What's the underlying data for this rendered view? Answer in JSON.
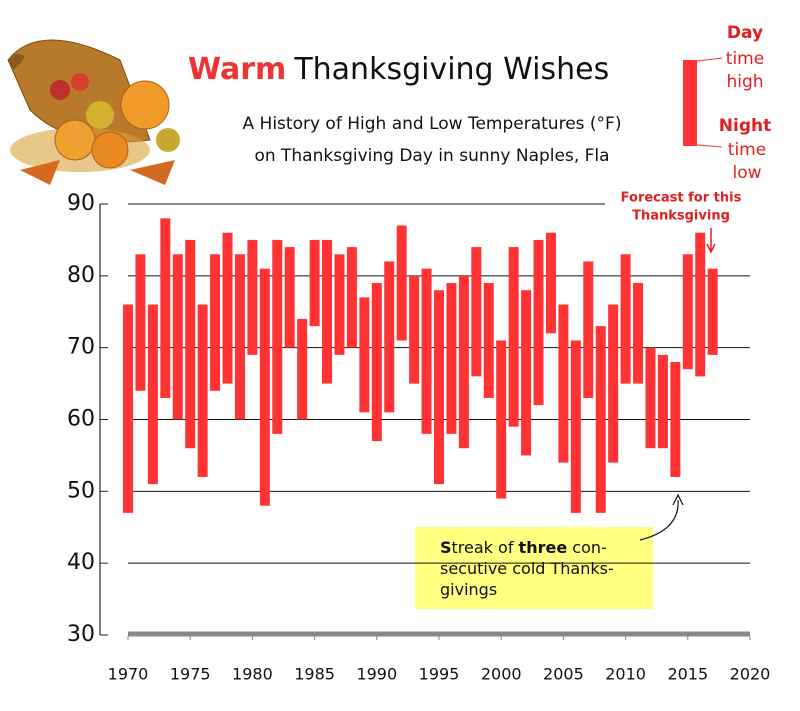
{
  "chart_data": {
    "type": "floating_bar",
    "title_emphasis": "Warm",
    "title_rest": "Thanksgiving Wishes",
    "subtitle": [
      "A History of High and Low Temperatures (°F)",
      "on Thanksgiving Day in sunny Naples, Fla"
    ],
    "legend": {
      "high": [
        "Day",
        "time",
        "high"
      ],
      "low": [
        "Night",
        "time",
        "low"
      ]
    },
    "x": [
      1970,
      1971,
      1972,
      1973,
      1974,
      1975,
      1976,
      1977,
      1978,
      1979,
      1980,
      1981,
      1982,
      1983,
      1984,
      1985,
      1986,
      1987,
      1988,
      1989,
      1990,
      1991,
      1992,
      1993,
      1994,
      1995,
      1996,
      1997,
      1998,
      1999,
      2000,
      2001,
      2002,
      2003,
      2004,
      2005,
      2006,
      2007,
      2008,
      2009,
      2010,
      2011,
      2012,
      2013,
      2014,
      2015,
      2016,
      2017
    ],
    "high": [
      76,
      83,
      76,
      88,
      83,
      85,
      76,
      83,
      86,
      83,
      85,
      81,
      85,
      84,
      74,
      85,
      85,
      83,
      84,
      77,
      79,
      82,
      87,
      80,
      81,
      78,
      79,
      80,
      84,
      79,
      71,
      84,
      78,
      85,
      86,
      76,
      71,
      82,
      73,
      76,
      83,
      79,
      70,
      69,
      68,
      83,
      86,
      81
    ],
    "low": [
      47,
      64,
      51,
      63,
      60,
      56,
      52,
      64,
      65,
      60,
      69,
      48,
      58,
      70,
      60,
      73,
      65,
      69,
      70,
      61,
      57,
      61,
      71,
      65,
      58,
      51,
      58,
      56,
      66,
      63,
      49,
      59,
      55,
      62,
      72,
      54,
      47,
      63,
      47,
      54,
      65,
      65,
      56,
      56,
      52,
      67,
      66,
      69
    ],
    "color": "#ff3333",
    "xlim": [
      1970,
      2020
    ],
    "xticks": [
      1970,
      1975,
      1980,
      1985,
      1990,
      1995,
      2000,
      2005,
      2010,
      2015,
      2020
    ],
    "ylim": [
      30,
      90
    ],
    "yticks": [
      30,
      40,
      50,
      60,
      70,
      80,
      90
    ],
    "grid": true,
    "annotations": {
      "forecast": [
        "Forecast for this",
        "Thanksgiving"
      ],
      "streak": [
        [
          {
            "text": "S",
            "bold": true
          },
          {
            "text": "treak of ",
            "bold": false
          },
          {
            "text": "three",
            "bold": true
          },
          {
            "text": " con-",
            "bold": false
          }
        ],
        [
          {
            "text": "secutive cold Thanks-",
            "bold": false
          }
        ],
        [
          {
            "text": "givings",
            "bold": false
          }
        ]
      ]
    }
  }
}
